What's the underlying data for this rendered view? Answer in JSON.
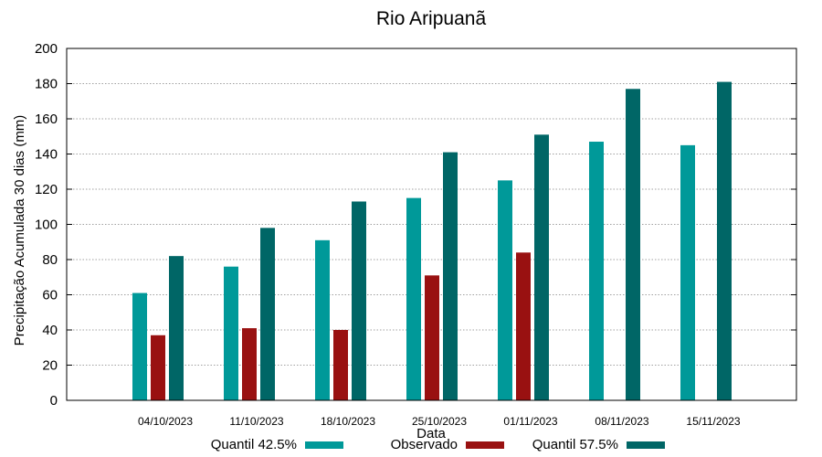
{
  "chart_data": {
    "type": "bar",
    "title": "Rio Aripuanã",
    "xlabel": "Data",
    "ylabel": "Precipitação Acumulada 30 dias (mm)",
    "ylim": [
      0,
      200
    ],
    "yticks": [
      0,
      20,
      40,
      60,
      80,
      100,
      120,
      140,
      160,
      180,
      200
    ],
    "grid": true,
    "legend_position": "bottom",
    "categories": [
      "04/10/2023",
      "11/10/2023",
      "18/10/2023",
      "25/10/2023",
      "01/11/2023",
      "08/11/2023",
      "15/11/2023"
    ],
    "series": [
      {
        "name": "Quantil 42.5%",
        "color": "#009999",
        "values": [
          61,
          76,
          91,
          115,
          125,
          147,
          145
        ]
      },
      {
        "name": "Observado",
        "color": "#991111",
        "values": [
          37,
          41,
          40,
          71,
          84,
          null,
          null
        ]
      },
      {
        "name": "Quantil 57.5%",
        "color": "#006666",
        "values": [
          82,
          98,
          113,
          141,
          151,
          177,
          181
        ]
      }
    ]
  }
}
